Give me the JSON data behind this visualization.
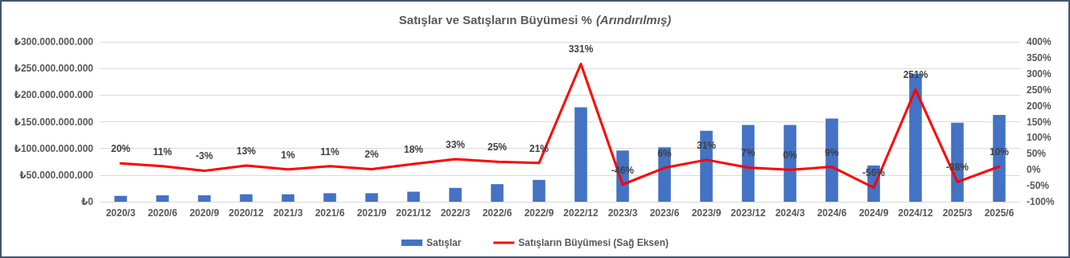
{
  "chart_data": {
    "type": "bar",
    "title": "Satışlar ve Satışların Büyümesi %",
    "subtitle": "(Arındırılmış)",
    "categories": [
      "2020/3",
      "2020/6",
      "2020/9",
      "2020/12",
      "2021/3",
      "2021/6",
      "2021/9",
      "2021/12",
      "2022/3",
      "2022/6",
      "2022/9",
      "2022/12",
      "2023/3",
      "2023/6",
      "2023/9",
      "2023/12",
      "2024/3",
      "2024/6",
      "2024/9",
      "2024/12",
      "2025/3",
      "2025/6"
    ],
    "series": [
      {
        "name": "Satışlar",
        "color": "#4472c4",
        "values": [
          11000000000,
          12000000000,
          12000000000,
          14000000000,
          14000000000,
          16000000000,
          16000000000,
          19000000000,
          26000000000,
          33000000000,
          41000000000,
          177000000000,
          96000000000,
          102000000000,
          133000000000,
          144000000000,
          144000000000,
          156000000000,
          68000000000,
          240000000000,
          148000000000,
          163000000000
        ]
      },
      {
        "name": "Satışların Büyümesi (Sağ Eksen)",
        "type": "line",
        "axis": "y2",
        "color": "#ff0000",
        "values": [
          20,
          11,
          -3,
          13,
          1,
          11,
          2,
          18,
          33,
          25,
          21,
          331,
          -46,
          6,
          31,
          7,
          0,
          9,
          -56,
          251,
          -38,
          10
        ],
        "value_labels": [
          "20%",
          "11%",
          "-3%",
          "13%",
          "1%",
          "11%",
          "2%",
          "18%",
          "33%",
          "25%",
          "21%",
          "331%",
          "-46%",
          "6%",
          "31%",
          "7%",
          "0%",
          "9%",
          "-56%",
          "251%",
          "-38%",
          "10%"
        ]
      }
    ],
    "ylim": [
      0,
      300000000000
    ],
    "yticks": [
      {
        "value": 0,
        "label": "₺0"
      },
      {
        "value": 50000000000,
        "label": "₺50.000.000.000"
      },
      {
        "value": 100000000000,
        "label": "₺100.000.000.000"
      },
      {
        "value": 150000000000,
        "label": "₺150.000.000.000"
      },
      {
        "value": 200000000000,
        "label": "₺200.000.000.000"
      },
      {
        "value": 250000000000,
        "label": "₺250.000.000.000"
      },
      {
        "value": 300000000000,
        "label": "₺300.000.000.000"
      }
    ],
    "y2lim": [
      -100,
      400
    ],
    "y2ticks": [
      {
        "value": -100,
        "label": "-100%"
      },
      {
        "value": -50,
        "label": "-50%"
      },
      {
        "value": 0,
        "label": "0%"
      },
      {
        "value": 50,
        "label": "50%"
      },
      {
        "value": 100,
        "label": "100%"
      },
      {
        "value": 150,
        "label": "150%"
      },
      {
        "value": 200,
        "label": "200%"
      },
      {
        "value": 250,
        "label": "250%"
      },
      {
        "value": 300,
        "label": "300%"
      },
      {
        "value": 350,
        "label": "350%"
      },
      {
        "value": 400,
        "label": "400%"
      }
    ],
    "grid": "y",
    "legend": "bottom",
    "marker": "none",
    "line_style": "solid"
  }
}
